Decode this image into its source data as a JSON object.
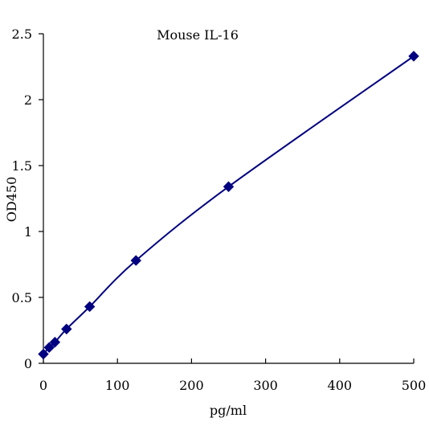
{
  "chart_data": {
    "type": "scatter",
    "title": "Mouse IL-16",
    "xlabel": "pg/ml",
    "ylabel": "OD450",
    "xlim": [
      0,
      500
    ],
    "ylim": [
      0,
      2.5
    ],
    "x_ticks": [
      0,
      100,
      200,
      300,
      400,
      500
    ],
    "y_ticks": [
      0,
      0.5,
      1,
      1.5,
      2,
      2.5
    ],
    "x_tick_labels": [
      "0",
      "100",
      "200",
      "300",
      "400",
      "500"
    ],
    "y_tick_labels": [
      "0",
      "0.5",
      "1",
      "1.5",
      "2",
      "2.5"
    ],
    "grid": false,
    "legend": "none",
    "series": [
      {
        "x": [
          0,
          7.8,
          15.6,
          31.25,
          62.5,
          125,
          250,
          500
        ],
        "y": [
          0.07,
          0.12,
          0.16,
          0.26,
          0.43,
          0.78,
          1.34,
          2.33
        ],
        "marker": "diamond",
        "smooth_line": true,
        "color": "#000080"
      }
    ]
  }
}
